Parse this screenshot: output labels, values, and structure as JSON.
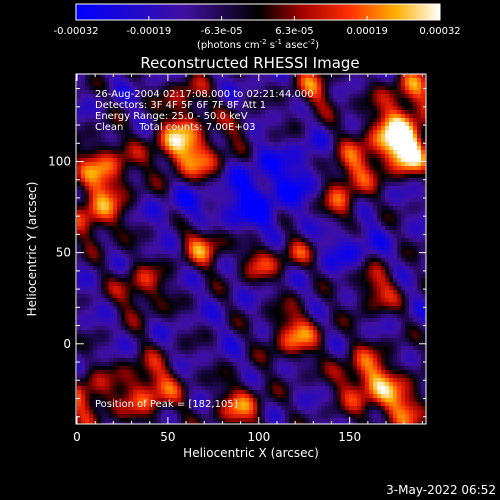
{
  "chart_data": {
    "type": "heatmap",
    "title": "Reconstructed RHESSI Image",
    "xlabel": "Heliocentric X (arcsec)",
    "ylabel": "Heliocentric Y (arcsec)",
    "xlim": [
      0,
      192
    ],
    "ylim": [
      -44,
      148
    ],
    "x_ticks": [
      "0",
      "50",
      "100",
      "150"
    ],
    "x_tick_values": [
      0,
      50,
      100,
      150
    ],
    "y_ticks": [
      "0",
      "50",
      "100"
    ],
    "y_tick_values": [
      0,
      50,
      100
    ],
    "colorbar": {
      "range": [
        -0.00032,
        0.00032
      ],
      "tick_labels": [
        "-0.00032",
        "-0.00019",
        "-6.3e-05",
        "6.3e-05",
        "0.00019",
        "0.00032"
      ],
      "unit_label_main": "(photons cm",
      "unit_sup1": "-2",
      "unit_mid1": " s",
      "unit_sup2": "-1",
      "unit_mid2": " asec",
      "unit_sup3": "-2",
      "unit_end": ")"
    },
    "annotations": [
      "26-Aug-2004 02:17:08.000 to 02:21:44.000",
      "Detectors: 3F 4F 5F 6F 7F 8F Att 1",
      "Energy Range: 25.0 - 50.0 keV",
      "Clean     Total counts: 7.00E+03"
    ],
    "peak_label": "Position of Peak = [182,105]",
    "peak": [
      182,
      105
    ]
  },
  "footer": {
    "timestamp": "3-May-2022 06:52"
  }
}
